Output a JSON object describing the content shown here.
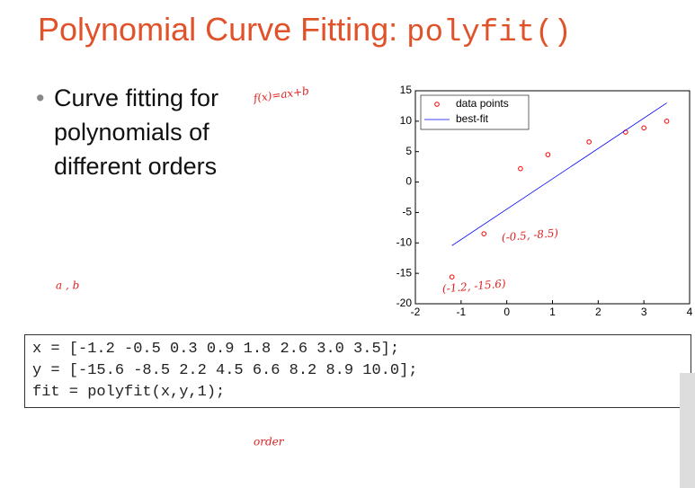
{
  "title": {
    "text": "Polynomial Curve Fitting:",
    "code": "polyfit()"
  },
  "bullet": [
    "Curve fitting for",
    "polynomials of",
    "different orders"
  ],
  "code": [
    "x = [-1.2 -0.5 0.3 0.9 1.8 2.6 3.0 3.5];",
    "y = [-15.6 -8.5 2.2 4.5 6.6 8.2 8.9 10.0];",
    "fit = polyfit(x,y,1);"
  ],
  "annotations": [
    "f(x)=ax+b",
    "a , b",
    "order",
    "(-0.5, -8.5)",
    "(-1.2, -15.6)"
  ],
  "chart_data": {
    "type": "scatter",
    "series": [
      {
        "name": "data points",
        "color": "#ff0000",
        "marker": "o",
        "x": [
          -1.2,
          -0.5,
          0.3,
          0.9,
          1.8,
          2.6,
          3.0,
          3.5
        ],
        "values": [
          -15.6,
          -8.5,
          2.2,
          4.5,
          6.6,
          8.2,
          8.9,
          10.0
        ]
      },
      {
        "name": "best-fit",
        "color": "#0000ff",
        "marker": "line",
        "x": [
          -1.2,
          3.5
        ],
        "values": [
          -10.44,
          13.0
        ]
      }
    ],
    "xlim": [
      -2,
      4
    ],
    "xticks": [
      -2,
      -1,
      0,
      1,
      2,
      3,
      4
    ],
    "ylim": [
      -20,
      15
    ],
    "yticks": [
      -20,
      -15,
      -10,
      -5,
      0,
      5,
      10,
      15
    ],
    "legend": "upper-left"
  }
}
